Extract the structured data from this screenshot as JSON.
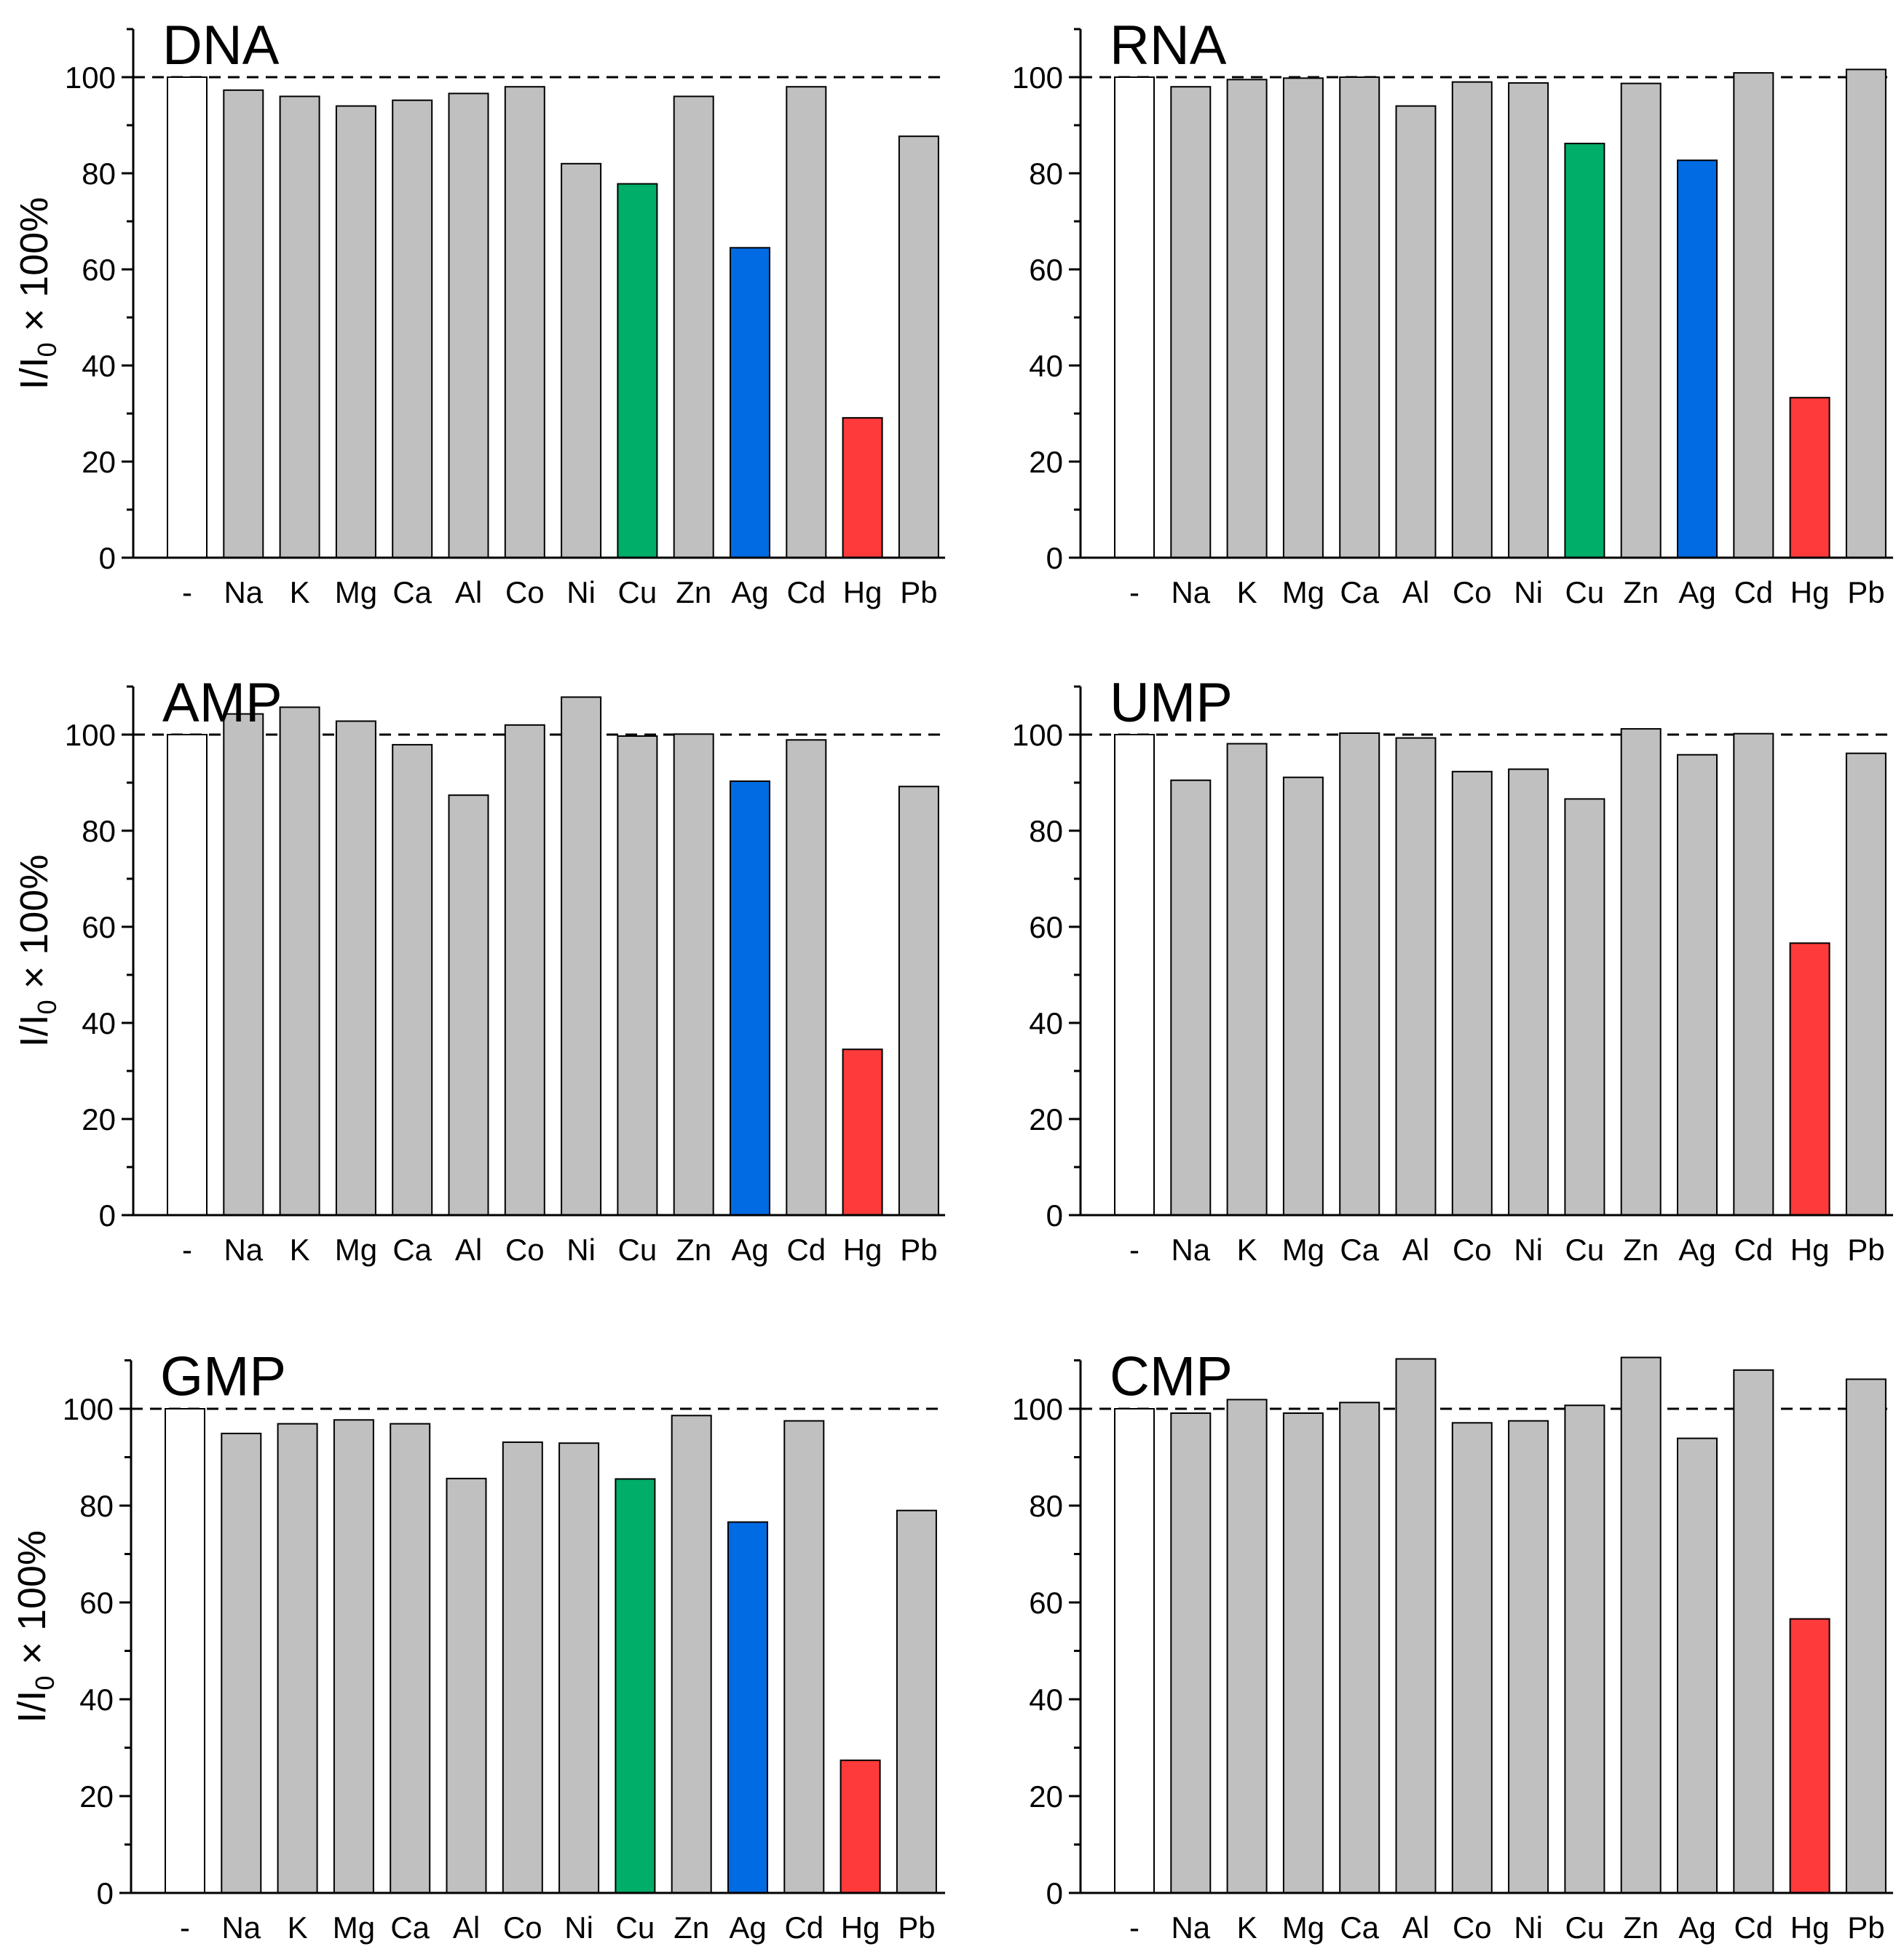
{
  "y_axis_label": {
    "prefix": "I/I",
    "subscript": "0",
    "suffix": " × 100%"
  },
  "colors": {
    "control": "#ffffff",
    "default": "#c0c0c0",
    "Cu": "#00ad69",
    "Ag": "#006be3",
    "Hg": "#ff3a3a",
    "stroke": "#000000"
  },
  "chart_data": [
    {
      "type": "bar",
      "title": "DNA",
      "categories": [
        "-",
        "Na",
        "K",
        "Mg",
        "Ca",
        "Al",
        "Co",
        "Ni",
        "Cu",
        "Zn",
        "Ag",
        "Cd",
        "Hg",
        "Pb"
      ],
      "values": [
        100,
        97.3,
        96.0,
        94.0,
        95.2,
        96.6,
        98.0,
        82.0,
        77.8,
        96.0,
        64.5,
        98.0,
        29.1,
        87.7
      ],
      "highlight": {
        "-": "control",
        "Cu": "Cu",
        "Ag": "Ag",
        "Hg": "Hg"
      },
      "ylim": [
        0,
        110
      ],
      "yticks": [
        0,
        20,
        40,
        60,
        80,
        100
      ],
      "reference_line": 100,
      "ylabel": "I/I0 × 100%"
    },
    {
      "type": "bar",
      "title": "RNA",
      "categories": [
        "-",
        "Na",
        "K",
        "Mg",
        "Ca",
        "Al",
        "Co",
        "Ni",
        "Cu",
        "Zn",
        "Ag",
        "Cd",
        "Hg",
        "Pb"
      ],
      "values": [
        100,
        98.0,
        99.5,
        99.8,
        100,
        94.0,
        99.0,
        98.8,
        86.2,
        98.7,
        82.7,
        100.9,
        33.3,
        101.6
      ],
      "highlight": {
        "-": "control",
        "Cu": "Cu",
        "Ag": "Ag",
        "Hg": "Hg"
      },
      "ylim": [
        0,
        110
      ],
      "yticks": [
        0,
        20,
        40,
        60,
        80,
        100
      ],
      "reference_line": 100,
      "ylabel": ""
    },
    {
      "type": "bar",
      "title": "AMP",
      "categories": [
        "-",
        "Na",
        "K",
        "Mg",
        "Ca",
        "Al",
        "Co",
        "Ni",
        "Cu",
        "Zn",
        "Ag",
        "Cd",
        "Hg",
        "Pb"
      ],
      "values": [
        100,
        104.3,
        105.7,
        102.8,
        97.9,
        87.4,
        102.0,
        107.8,
        99.7,
        100.1,
        90.3,
        98.9,
        34.5,
        89.2
      ],
      "highlight": {
        "-": "control",
        "Ag": "Ag",
        "Hg": "Hg"
      },
      "ylim": [
        0,
        110
      ],
      "yticks": [
        0,
        20,
        40,
        60,
        80,
        100
      ],
      "reference_line": 100,
      "ylabel": "I/I0 × 100%"
    },
    {
      "type": "bar",
      "title": "UMP",
      "categories": [
        "-",
        "Na",
        "K",
        "Mg",
        "Ca",
        "Al",
        "Co",
        "Ni",
        "Cu",
        "Zn",
        "Ag",
        "Cd",
        "Hg",
        "Pb"
      ],
      "values": [
        100,
        90.5,
        98.1,
        91.1,
        100.3,
        99.3,
        92.3,
        92.8,
        86.6,
        101.2,
        95.8,
        100.2,
        56.6,
        96.1
      ],
      "highlight": {
        "-": "control",
        "Hg": "Hg"
      },
      "ylim": [
        0,
        110
      ],
      "yticks": [
        0,
        20,
        40,
        60,
        80,
        100
      ],
      "reference_line": 100,
      "ylabel": ""
    },
    {
      "type": "bar",
      "title": "GMP",
      "categories": [
        "-",
        "Na",
        "K",
        "Mg",
        "Ca",
        "Al",
        "Co",
        "Ni",
        "Cu",
        "Zn",
        "Ag",
        "Cd",
        "Hg",
        "Pb"
      ],
      "values": [
        100,
        94.9,
        96.9,
        97.7,
        96.9,
        85.6,
        93.1,
        92.9,
        85.5,
        98.6,
        76.6,
        97.5,
        27.4,
        79.0
      ],
      "highlight": {
        "-": "control",
        "Cu": "Cu",
        "Ag": "Ag",
        "Hg": "Hg"
      },
      "ylim": [
        0,
        110
      ],
      "yticks": [
        0,
        20,
        40,
        60,
        80,
        100
      ],
      "reference_line": 100,
      "ylabel": "I/I0 × 100%"
    },
    {
      "type": "bar",
      "title": "CMP",
      "categories": [
        "-",
        "Na",
        "K",
        "Mg",
        "Ca",
        "Al",
        "Co",
        "Ni",
        "Cu",
        "Zn",
        "Ag",
        "Cd",
        "Hg",
        "Pb"
      ],
      "values": [
        100,
        99.1,
        101.9,
        99.1,
        101.3,
        110.3,
        97.1,
        97.5,
        100.7,
        110.6,
        93.9,
        108.0,
        56.6,
        106.1
      ],
      "highlight": {
        "-": "control",
        "Hg": "Hg"
      },
      "ylim": [
        0,
        110
      ],
      "yticks": [
        0,
        20,
        40,
        60,
        80,
        100
      ],
      "reference_line": 100,
      "ylabel": ""
    }
  ]
}
